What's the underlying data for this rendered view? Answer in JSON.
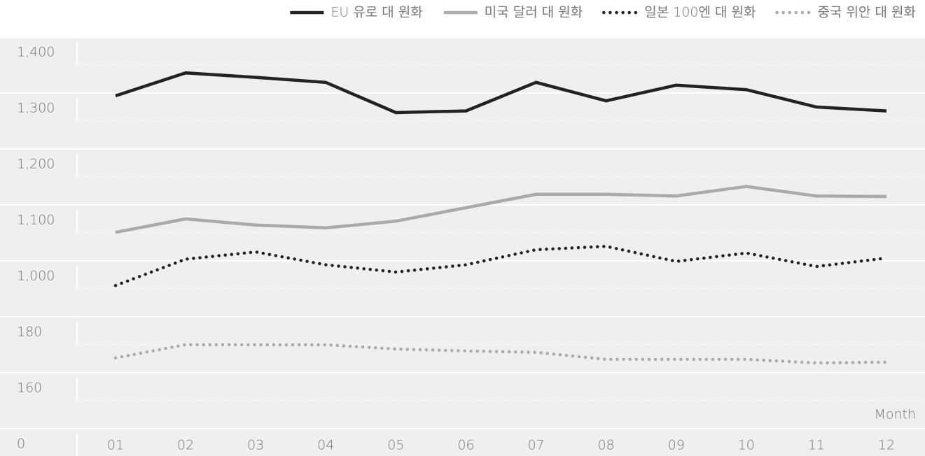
{
  "chart_data": {
    "type": "line",
    "x_label": "Month",
    "categories": [
      "01",
      "02",
      "03",
      "04",
      "05",
      "06",
      "07",
      "08",
      "09",
      "10",
      "11",
      "12"
    ],
    "series": [
      {
        "name": "EU 유로 대 원화",
        "color": "#222222",
        "style": "solid",
        "values": [
          1345,
          1386,
          1378,
          1369,
          1315,
          1318,
          1369,
          1336,
          1364,
          1356,
          1325,
          1318
        ]
      },
      {
        "name": "미국 달러 대 원화",
        "color": "#aaaaaa",
        "style": "solid",
        "values": [
          1101,
          1125,
          1114,
          1109,
          1121,
          1145,
          1169,
          1169,
          1166,
          1183,
          1166,
          1165
        ]
      },
      {
        "name": "일본 100엔 대 원화",
        "color": "#222222",
        "style": "dotted",
        "values": [
          1006,
          1053,
          1066,
          1043,
          1030,
          1043,
          1070,
          1076,
          1049,
          1064,
          1040,
          1055
        ]
      },
      {
        "name": "중국 위안 대 원화",
        "color": "#aaaaaa",
        "style": "dotted",
        "values": [
          175.3,
          181.8,
          180,
          180,
          178.5,
          177.8,
          177.3,
          174.8,
          174.8,
          174.8,
          173.5,
          173.8
        ]
      }
    ],
    "ylim": [
      0,
      1450
    ],
    "yticks": [
      {
        "value": 1400,
        "label": "1,400"
      },
      {
        "value": 1300,
        "label": "1,300"
      },
      {
        "value": 1200,
        "label": "1,200"
      },
      {
        "value": 1100,
        "label": "1,100"
      },
      {
        "value": 1000,
        "label": "1,000"
      },
      180,
      160,
      0
    ],
    "grid": true,
    "legend": "top-right"
  }
}
